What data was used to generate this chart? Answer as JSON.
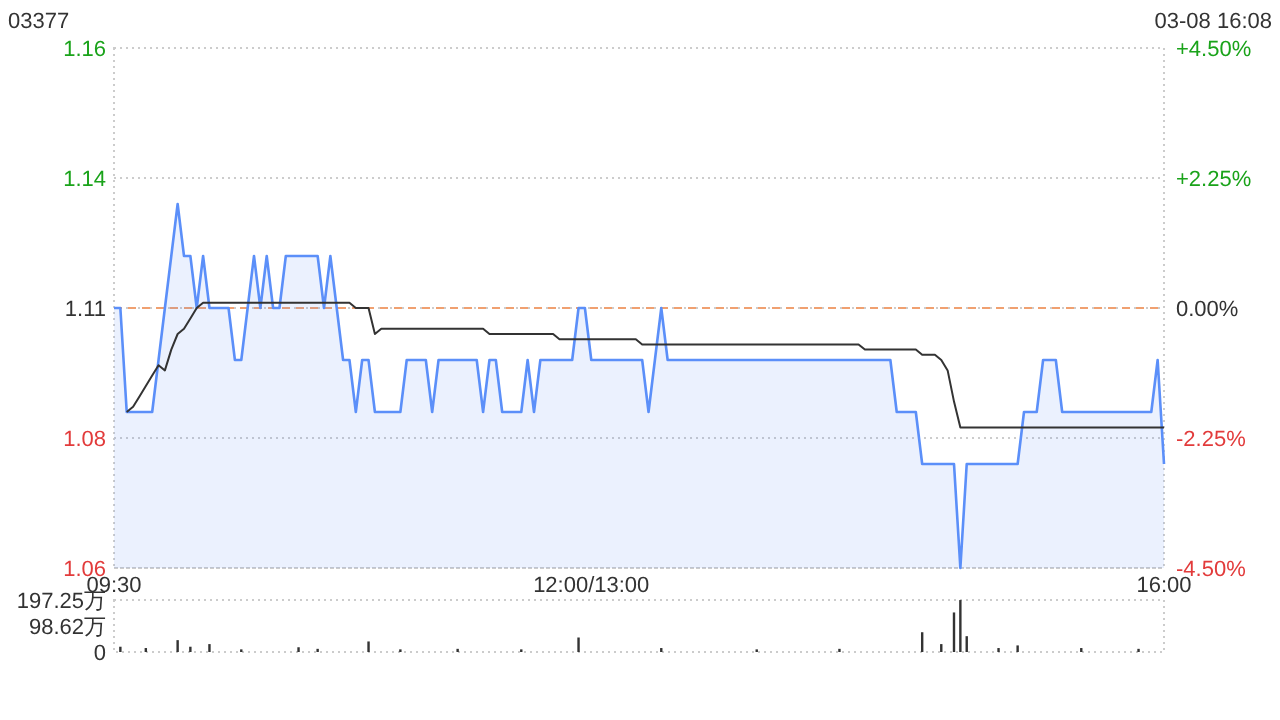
{
  "chart_data": [
    {
      "type": "line",
      "title": "03377",
      "subtitle": "03-08 16:08",
      "grid": "y",
      "categories": [
        "09:30",
        null,
        null,
        null,
        null,
        null,
        null,
        null,
        null,
        null,
        null,
        null,
        null,
        null,
        null,
        null,
        null,
        null,
        null,
        null,
        null,
        null,
        null,
        null,
        null,
        null,
        null,
        null,
        null,
        null,
        null,
        null,
        null,
        null,
        null,
        null,
        null,
        null,
        null,
        null,
        null,
        null,
        null,
        null,
        null,
        null,
        null,
        null,
        null,
        null,
        null,
        null,
        null,
        null,
        null,
        null,
        null,
        null,
        null,
        null,
        null,
        null,
        null,
        null,
        null,
        null,
        null,
        null,
        null,
        null,
        null,
        null,
        null,
        null,
        null,
        "12:00/13:00",
        null,
        null,
        null,
        null,
        null,
        null,
        null,
        null,
        null,
        null,
        null,
        null,
        null,
        null,
        null,
        null,
        null,
        null,
        null,
        null,
        null,
        null,
        null,
        null,
        null,
        null,
        null,
        null,
        null,
        null,
        null,
        null,
        null,
        null,
        null,
        null,
        null,
        null,
        null,
        null,
        null,
        null,
        null,
        null,
        null,
        null,
        null,
        null,
        null,
        null,
        null,
        null,
        null,
        null,
        null,
        null,
        null,
        null,
        null,
        null,
        null,
        null,
        null,
        null,
        null,
        null,
        null,
        null,
        null,
        null,
        null,
        null,
        null,
        null,
        null,
        null,
        null,
        null,
        null,
        null,
        null,
        null,
        null,
        null,
        null,
        null,
        null,
        null,
        null,
        "16:00"
      ],
      "ylim": [
        1.06,
        1.16
      ],
      "yticks": [
        1.06,
        {
          "value": 1.085,
          "label": "1.08"
        },
        1.11,
        {
          "value": 1.135,
          "label": "1.14"
        },
        1.16
      ],
      "y2lim": [
        -4.5,
        4.5
      ],
      "y2ticks": [
        {
          "value": -4.5,
          "label": "-4.50%"
        },
        {
          "value": -2.25,
          "label": "-2.25%"
        },
        {
          "value": 0,
          "label": "0.00%"
        },
        {
          "value": 2.25,
          "label": "+2.25%"
        },
        {
          "value": 4.5,
          "label": "+4.50%"
        }
      ],
      "ref_lines": [
        {
          "axis": "y",
          "value": 1.11,
          "color": "#f0a070",
          "line_style": "dashed"
        }
      ],
      "series": [
        {
          "type": "area",
          "color": "#5b8ff9",
          "values": [
            1.11,
            1.11,
            1.09,
            1.09,
            1.09,
            1.09,
            1.09,
            1.1,
            1.11,
            1.12,
            1.13,
            1.12,
            1.12,
            1.11,
            1.12,
            1.11,
            1.11,
            1.11,
            1.11,
            1.1,
            1.1,
            1.11,
            1.12,
            1.11,
            1.12,
            1.11,
            1.11,
            1.12,
            1.12,
            1.12,
            1.12,
            1.12,
            1.12,
            1.11,
            1.12,
            1.11,
            1.1,
            1.1,
            1.09,
            1.1,
            1.1,
            1.09,
            1.09,
            1.09,
            1.09,
            1.09,
            1.1,
            1.1,
            1.1,
            1.1,
            1.09,
            1.1,
            1.1,
            1.1,
            1.1,
            1.1,
            1.1,
            1.1,
            1.09,
            1.1,
            1.1,
            1.09,
            1.09,
            1.09,
            1.09,
            1.1,
            1.09,
            1.1,
            1.1,
            1.1,
            1.1,
            1.1,
            1.1,
            1.11,
            1.11,
            1.1,
            1.1,
            1.1,
            1.1,
            1.1,
            1.1,
            1.1,
            1.1,
            1.1,
            1.09,
            1.1,
            1.11,
            1.1,
            1.1,
            1.1,
            1.1,
            1.1,
            1.1,
            1.1,
            1.1,
            1.1,
            1.1,
            1.1,
            1.1,
            1.1,
            1.1,
            1.1,
            1.1,
            1.1,
            1.1,
            1.1,
            1.1,
            1.1,
            1.1,
            1.1,
            1.1,
            1.1,
            1.1,
            1.1,
            1.1,
            1.1,
            1.1,
            1.1,
            1.1,
            1.1,
            1.1,
            1.1,
            1.1,
            1.09,
            1.09,
            1.09,
            1.09,
            1.08,
            1.08,
            1.08,
            1.08,
            1.08,
            1.08,
            1.06,
            1.08,
            1.08,
            1.08,
            1.08,
            1.08,
            1.08,
            1.08,
            1.08,
            1.08,
            1.09,
            1.09,
            1.09,
            1.1,
            1.1,
            1.1,
            1.09,
            1.09,
            1.09,
            1.09,
            1.09,
            1.09,
            1.09,
            1.09,
            1.09,
            1.09,
            1.09,
            1.09,
            1.09,
            1.09,
            1.09,
            1.1,
            1.08
          ]
        },
        {
          "color": "#333333",
          "values": [
            null,
            null,
            1.09,
            1.091,
            1.093,
            1.095,
            1.097,
            1.099,
            1.098,
            1.102,
            1.105,
            1.106,
            1.108,
            1.11,
            1.111,
            1.111,
            1.111,
            1.111,
            1.111,
            1.111,
            1.111,
            1.111,
            1.111,
            1.111,
            1.111,
            1.111,
            1.111,
            1.111,
            1.111,
            1.111,
            1.111,
            1.111,
            1.111,
            1.111,
            1.111,
            1.111,
            1.111,
            1.111,
            1.11,
            1.11,
            1.11,
            1.105,
            1.106,
            1.106,
            1.106,
            1.106,
            1.106,
            1.106,
            1.106,
            1.106,
            1.106,
            1.106,
            1.106,
            1.106,
            1.106,
            1.106,
            1.106,
            1.106,
            1.106,
            1.105,
            1.105,
            1.105,
            1.105,
            1.105,
            1.105,
            1.105,
            1.105,
            1.105,
            1.105,
            1.105,
            1.104,
            1.104,
            1.104,
            1.104,
            1.104,
            1.104,
            1.104,
            1.104,
            1.104,
            1.104,
            1.104,
            1.104,
            1.104,
            1.103,
            1.103,
            1.103,
            1.103,
            1.103,
            1.103,
            1.103,
            1.103,
            1.103,
            1.103,
            1.103,
            1.103,
            1.103,
            1.103,
            1.103,
            1.103,
            1.103,
            1.103,
            1.103,
            1.103,
            1.103,
            1.103,
            1.103,
            1.103,
            1.103,
            1.103,
            1.103,
            1.103,
            1.103,
            1.103,
            1.103,
            1.103,
            1.103,
            1.103,
            1.103,
            1.102,
            1.102,
            1.102,
            1.102,
            1.102,
            1.102,
            1.102,
            1.102,
            1.102,
            1.101,
            1.101,
            1.101,
            1.1,
            1.098,
            1.092,
            1.087,
            1.087,
            1.087,
            1.087,
            1.087,
            1.087,
            1.087,
            1.087,
            1.087,
            1.087,
            1.087,
            1.087,
            1.087,
            1.087,
            1.087,
            1.087,
            1.087,
            1.087,
            1.087,
            1.087,
            1.087,
            1.087,
            1.087,
            1.087,
            1.087,
            1.087,
            1.087,
            1.087,
            1.087,
            1.087,
            1.087,
            1.087,
            1.087
          ]
        }
      ]
    },
    {
      "type": "bar",
      "tick_labels": "y",
      "categories": [
        null,
        null,
        null,
        null,
        null,
        null,
        null,
        null,
        null,
        null,
        null,
        null,
        null,
        null,
        null,
        null,
        null,
        null,
        null,
        null,
        null,
        null,
        null,
        null,
        null,
        null,
        null,
        null,
        null,
        null,
        null,
        null,
        null,
        null,
        null,
        null,
        null,
        null,
        null,
        null,
        null,
        null,
        null,
        null,
        null,
        null,
        null,
        null,
        null,
        null,
        null,
        null,
        null,
        null,
        null,
        null,
        null,
        null,
        null,
        null,
        null,
        null,
        null,
        null,
        null,
        null,
        null,
        null,
        null,
        null,
        null,
        null,
        null,
        null,
        null,
        null,
        null,
        null,
        null,
        null,
        null,
        null,
        null,
        null,
        null,
        null,
        null,
        null,
        null,
        null,
        null,
        null,
        null,
        null,
        null,
        null,
        null,
        null,
        null,
        null,
        null,
        null,
        null,
        null,
        null,
        null,
        null,
        null,
        null,
        null,
        null,
        null,
        null,
        null,
        null,
        null,
        null,
        null,
        null,
        null,
        null,
        null,
        null,
        null,
        null,
        null,
        null,
        null,
        null,
        null,
        null,
        null,
        null,
        null,
        null,
        null,
        null,
        null,
        null,
        null,
        null,
        null,
        null,
        null,
        null,
        null,
        null,
        null,
        null,
        null,
        null,
        null,
        null,
        null,
        null,
        null,
        null,
        null,
        null,
        null,
        null,
        null,
        null,
        null,
        null,
        null
      ],
      "ylim": [
        0,
        197.25
      ],
      "yticks": [
        0,
        {
          "value": 98.62,
          "label": "98.62万"
        },
        {
          "value": 197.25,
          "label": "197.25万"
        }
      ],
      "series": [
        {
          "color": "#333333",
          "values": [
            null,
            20,
            null,
            null,
            null,
            15,
            null,
            null,
            null,
            null,
            45,
            null,
            20,
            null,
            null,
            30,
            null,
            null,
            null,
            null,
            10,
            null,
            null,
            null,
            null,
            null,
            null,
            null,
            null,
            18,
            null,
            null,
            12,
            null,
            null,
            null,
            null,
            null,
            null,
            null,
            40,
            null,
            null,
            null,
            null,
            10,
            null,
            null,
            null,
            null,
            null,
            null,
            null,
            null,
            12,
            null,
            null,
            null,
            null,
            null,
            null,
            null,
            null,
            null,
            10,
            null,
            null,
            null,
            null,
            null,
            null,
            null,
            null,
            55,
            null,
            null,
            null,
            null,
            null,
            null,
            null,
            null,
            null,
            null,
            null,
            null,
            15,
            null,
            null,
            null,
            null,
            null,
            null,
            null,
            null,
            null,
            null,
            null,
            null,
            null,
            null,
            10,
            null,
            null,
            null,
            null,
            null,
            null,
            null,
            null,
            null,
            null,
            null,
            null,
            12,
            null,
            null,
            null,
            null,
            null,
            null,
            null,
            null,
            null,
            null,
            null,
            null,
            75,
            null,
            null,
            30,
            null,
            150,
            197,
            60,
            null,
            null,
            null,
            null,
            15,
            null,
            null,
            25,
            null,
            null,
            null,
            null,
            null,
            null,
            null,
            null,
            null,
            15,
            null,
            null,
            null,
            null,
            null,
            null,
            null,
            null,
            12,
            null,
            null,
            null,
            null
          ]
        }
      ]
    }
  ]
}
